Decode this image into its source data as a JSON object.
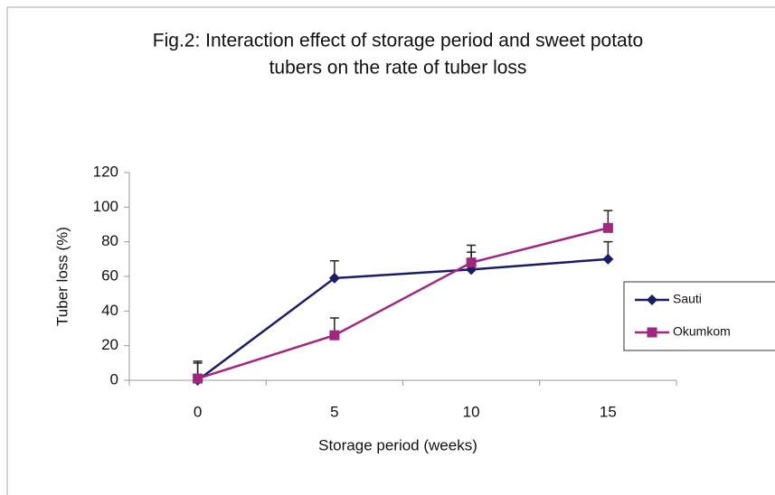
{
  "chart_data": {
    "type": "line",
    "title": [
      "Fig.2: Interaction effect of storage period and sweet potato",
      "tubers on the rate of tuber loss"
    ],
    "x_label": "Storage period (weeks)",
    "y_label": "Tuber loss (%)",
    "categories": [
      "0",
      "5",
      "10",
      "15"
    ],
    "series": [
      {
        "name": "Sauti",
        "color": "#1c1c66",
        "marker": "diamond",
        "values": [
          0,
          59,
          64,
          70
        ],
        "errors": [
          10,
          10,
          10,
          10
        ]
      },
      {
        "name": "Okumkom",
        "color": "#a0267e",
        "marker": "square",
        "values": [
          1,
          26,
          68,
          88
        ],
        "errors": [
          10,
          10,
          10,
          10
        ]
      }
    ],
    "ylim": [
      0,
      120
    ],
    "yticks": [
      0,
      20,
      40,
      60,
      80,
      100,
      120
    ],
    "grid": false,
    "legend": "right"
  }
}
